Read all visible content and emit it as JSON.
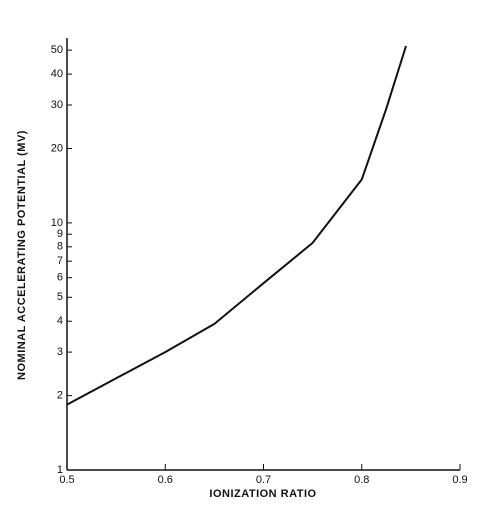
{
  "chart_data": {
    "type": "line",
    "x_label": "IONIZATION RATIO",
    "y_label": "NOMINAL ACCELERATING POTENTIAL (MV)",
    "x": [
      0.5,
      0.55,
      0.6,
      0.65,
      0.7,
      0.75,
      0.8,
      0.825,
      0.845
    ],
    "values": [
      1.84,
      2.35,
      3.0,
      3.9,
      5.7,
      8.3,
      15,
      29,
      52
    ],
    "color": "#111111",
    "xlim": [
      0.5,
      0.9
    ],
    "xticks": [
      0.5,
      0.6,
      0.7,
      0.8,
      0.9
    ],
    "ylim": [
      1,
      56
    ],
    "yticks": [
      1,
      2,
      3,
      4,
      5,
      6,
      7,
      8,
      9,
      10,
      20,
      30,
      40,
      50
    ],
    "log_y": true,
    "grid": false
  }
}
